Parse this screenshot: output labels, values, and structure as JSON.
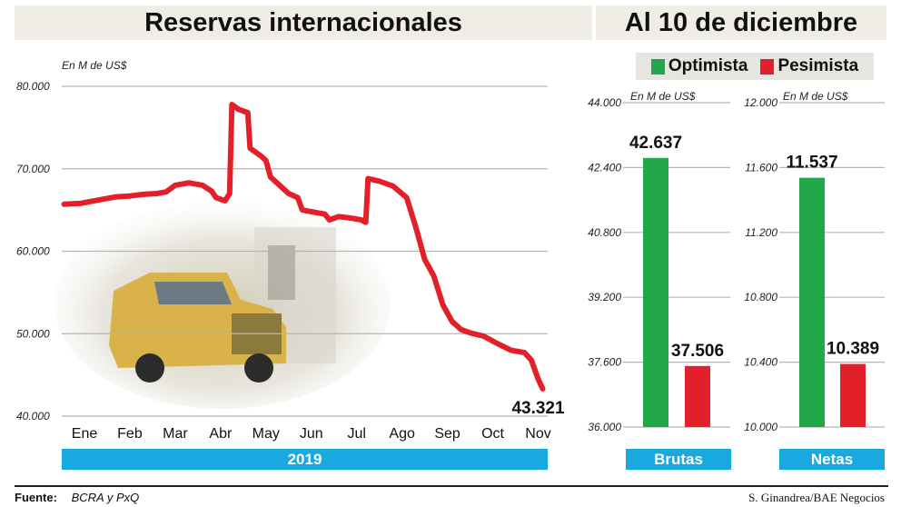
{
  "header": {
    "left_title": "Reservas internacionales",
    "right_title": "Al 10 de diciembre"
  },
  "legend": [
    {
      "label": "Optimista",
      "color": "#22a84a"
    },
    {
      "label": "Pesimista",
      "color": "#e3202a"
    }
  ],
  "footer": {
    "source_label": "Fuente:",
    "source_value": "BCRA y PxQ",
    "credit": "S. Ginandrea/BAE Negocios"
  },
  "colors": {
    "line": "#e3202a",
    "optimista": "#22a84a",
    "pesimista": "#e3202a",
    "band": "#19a9e0"
  },
  "chart_data": [
    {
      "type": "line",
      "unit_label": "En M de US$",
      "y_ticks": [
        "80.000",
        "70.000",
        "60.000",
        "50.000",
        "40.000"
      ],
      "ylim": [
        40000,
        80000
      ],
      "x_ticks": [
        "Ene",
        "Feb",
        "Mar",
        "Abr",
        "May",
        "Jun",
        "Jul",
        "Ago",
        "Sep",
        "Oct",
        "Nov"
      ],
      "xlim": [
        0,
        10.15
      ],
      "band_label": "2019",
      "end_label": "43.321",
      "grid": true,
      "series": [
        {
          "points": [
            [
              -0.45,
              65700
            ],
            [
              -0.1,
              65800
            ],
            [
              0.1,
              66000
            ],
            [
              0.4,
              66300
            ],
            [
              0.7,
              66600
            ],
            [
              1.0,
              66700
            ],
            [
              1.3,
              66900
            ],
            [
              1.6,
              67000
            ],
            [
              1.8,
              67200
            ],
            [
              2.0,
              68000
            ],
            [
              2.3,
              68300
            ],
            [
              2.6,
              68000
            ],
            [
              2.8,
              67300
            ],
            [
              2.9,
              66500
            ],
            [
              3.1,
              66100
            ],
            [
              3.2,
              67000
            ],
            [
              3.25,
              77800
            ],
            [
              3.4,
              77200
            ],
            [
              3.6,
              76800
            ],
            [
              3.65,
              72500
            ],
            [
              3.9,
              71500
            ],
            [
              4.0,
              71000
            ],
            [
              4.1,
              69000
            ],
            [
              4.3,
              68000
            ],
            [
              4.5,
              67000
            ],
            [
              4.7,
              66500
            ],
            [
              4.8,
              65000
            ],
            [
              5.0,
              64800
            ],
            [
              5.3,
              64500
            ],
            [
              5.4,
              63800
            ],
            [
              5.6,
              64200
            ],
            [
              5.9,
              64000
            ],
            [
              6.1,
              63800
            ],
            [
              6.2,
              63500
            ],
            [
              6.25,
              68800
            ],
            [
              6.5,
              68500
            ],
            [
              6.8,
              67900
            ],
            [
              7.1,
              66500
            ],
            [
              7.3,
              63000
            ],
            [
              7.5,
              59000
            ],
            [
              7.7,
              57000
            ],
            [
              7.9,
              53500
            ],
            [
              8.1,
              51500
            ],
            [
              8.3,
              50500
            ],
            [
              8.5,
              50100
            ],
            [
              8.8,
              49700
            ],
            [
              9.1,
              48800
            ],
            [
              9.4,
              48000
            ],
            [
              9.7,
              47700
            ],
            [
              9.85,
              46800
            ],
            [
              10.0,
              44500
            ],
            [
              10.1,
              43321
            ]
          ]
        }
      ]
    },
    {
      "type": "bar",
      "unit_label": "En M de US$",
      "categories": [
        "Optimista",
        "Pesimista"
      ],
      "values": [
        42637,
        37506
      ],
      "value_labels": [
        "42.637",
        "37.506"
      ],
      "y_ticks": [
        "44.000",
        "42.400",
        "40.800",
        "39.200",
        "37.600",
        "36.000"
      ],
      "ylim": [
        36000,
        44000
      ],
      "group_label": "Brutas"
    },
    {
      "type": "bar",
      "unit_label": "En M de US$",
      "categories": [
        "Optimista",
        "Pesimista"
      ],
      "values": [
        11537,
        10389
      ],
      "value_labels": [
        "11.537",
        "10.389"
      ],
      "y_ticks": [
        "12.000",
        "11.600",
        "11.200",
        "10.800",
        "10.400",
        "10.000"
      ],
      "ylim": [
        10000,
        12000
      ],
      "group_label": "Netas"
    }
  ]
}
